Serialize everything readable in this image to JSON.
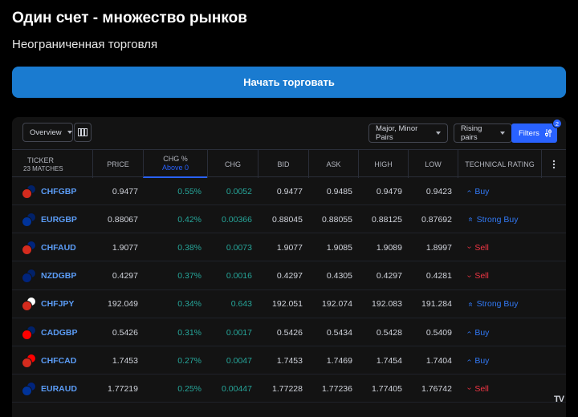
{
  "hero": {
    "title": "Один счет - множество рынков",
    "subtitle": "Неограниченная торговля",
    "cta_label": "Начать торговать"
  },
  "toolbar": {
    "view_label": "Overview",
    "pairs_label": "Major, Minor Pairs",
    "preset_label": "Rising pairs",
    "filters_label": "Filters",
    "filters_count": "2"
  },
  "table": {
    "headers": {
      "ticker": "TICKER",
      "matches": "23 MATCHES",
      "price": "PRICE",
      "chg_pct": "CHG %",
      "chg_pct_filter": "Above 0",
      "chg": "CHG",
      "bid": "BID",
      "ask": "ASK",
      "high": "HIGH",
      "low": "LOW",
      "rating": "TECHNICAL RATING"
    },
    "rows": [
      {
        "ticker": "CHFGBP",
        "price": "0.9477",
        "chg_pct": "0.55%",
        "chg": "0.0052",
        "bid": "0.9477",
        "ask": "0.9485",
        "high": "0.9479",
        "low": "0.9423",
        "rating": "Buy",
        "rating_type": "buy",
        "flag_a": "#d52b1e",
        "flag_b": "#012169"
      },
      {
        "ticker": "EURGBP",
        "price": "0.88067",
        "chg_pct": "0.42%",
        "chg": "0.00366",
        "bid": "0.88045",
        "ask": "0.88055",
        "high": "0.88125",
        "low": "0.87692",
        "rating": "Strong Buy",
        "rating_type": "strong-buy",
        "flag_a": "#003399",
        "flag_b": "#012169"
      },
      {
        "ticker": "CHFAUD",
        "price": "1.9077",
        "chg_pct": "0.38%",
        "chg": "0.0073",
        "bid": "1.9077",
        "ask": "1.9085",
        "high": "1.9089",
        "low": "1.8997",
        "rating": "Sell",
        "rating_type": "sell",
        "flag_a": "#d52b1e",
        "flag_b": "#00247d"
      },
      {
        "ticker": "NZDGBP",
        "price": "0.4297",
        "chg_pct": "0.37%",
        "chg": "0.0016",
        "bid": "0.4297",
        "ask": "0.4305",
        "high": "0.4297",
        "low": "0.4281",
        "rating": "Sell",
        "rating_type": "sell",
        "flag_a": "#00247d",
        "flag_b": "#012169"
      },
      {
        "ticker": "CHFJPY",
        "price": "192.049",
        "chg_pct": "0.34%",
        "chg": "0.643",
        "bid": "192.051",
        "ask": "192.074",
        "high": "192.083",
        "low": "191.284",
        "rating": "Strong Buy",
        "rating_type": "strong-buy",
        "flag_a": "#d52b1e",
        "flag_b": "#ffffff"
      },
      {
        "ticker": "CADGBP",
        "price": "0.5426",
        "chg_pct": "0.31%",
        "chg": "0.0017",
        "bid": "0.5426",
        "ask": "0.5434",
        "high": "0.5428",
        "low": "0.5409",
        "rating": "Buy",
        "rating_type": "buy",
        "flag_a": "#ff0000",
        "flag_b": "#012169"
      },
      {
        "ticker": "CHFCAD",
        "price": "1.7453",
        "chg_pct": "0.27%",
        "chg": "0.0047",
        "bid": "1.7453",
        "ask": "1.7469",
        "high": "1.7454",
        "low": "1.7404",
        "rating": "Buy",
        "rating_type": "buy",
        "flag_a": "#d52b1e",
        "flag_b": "#ff0000"
      },
      {
        "ticker": "EURAUD",
        "price": "1.77219",
        "chg_pct": "0.25%",
        "chg": "0.00447",
        "bid": "1.77228",
        "ask": "1.77236",
        "high": "1.77405",
        "low": "1.76742",
        "rating": "Sell",
        "rating_type": "sell",
        "flag_a": "#003399",
        "flag_b": "#00247d"
      }
    ]
  },
  "colors": {
    "accent": "#2962ff",
    "cta": "#1a7bd0",
    "positive": "#26a69a",
    "buy": "#3179f5",
    "sell": "#f23645"
  },
  "icons": {
    "view_toggle": "columns-icon",
    "filters": "sliders-icon",
    "more": "vertical-dots-icon",
    "buy": "chevron-up-icon",
    "strong_buy": "double-chevron-up-icon",
    "sell": "chevron-down-icon"
  }
}
